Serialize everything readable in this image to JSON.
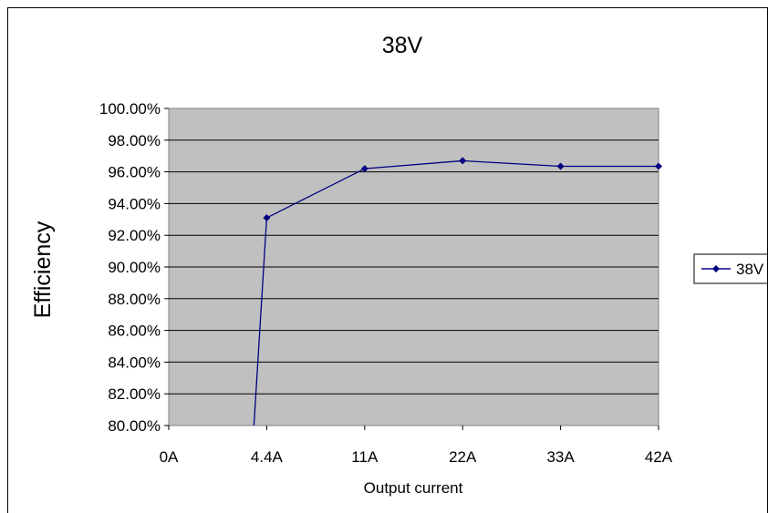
{
  "chart_data": {
    "type": "line",
    "title": "38V",
    "xlabel": "Output current",
    "ylabel": "Efficiency",
    "categories": [
      "0A",
      "4.4A",
      "11A",
      "22A",
      "33A",
      "42A"
    ],
    "ylim": [
      80,
      100
    ],
    "y_ticks": [
      "80.00%",
      "82.00%",
      "84.00%",
      "86.00%",
      "88.00%",
      "90.00%",
      "92.00%",
      "94.00%",
      "96.00%",
      "98.00%",
      "100.00%"
    ],
    "grid": true,
    "legend": "right",
    "series": [
      {
        "name": "38V",
        "color": "#000080",
        "values": [
          null,
          93.1,
          96.2,
          96.7,
          96.35,
          96.35
        ],
        "offchart_segment": {
          "from_category": "0A",
          "to_category": "4.4A",
          "note": "line drops below 80% toward 0A"
        }
      }
    ],
    "plot_background": "#c0c0c0"
  }
}
